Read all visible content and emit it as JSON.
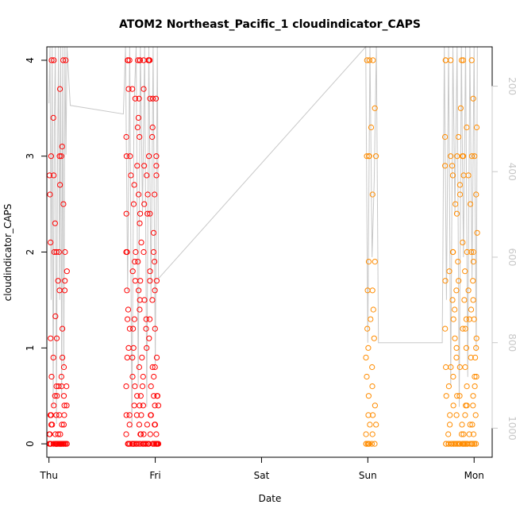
{
  "chart_data": {
    "type": "scatter",
    "title": "ATOM2 Northeast_Pacific_1 cloudindicator_CAPS",
    "xlabel": "Date",
    "ylabel": "cloudindicator_CAPS",
    "x_unit": "days since Thursday 00:00",
    "xlim": [
      -0.02,
      4.17
    ],
    "ylim": [
      -0.14,
      4.14
    ],
    "x_ticks": [
      {
        "label": "Thu",
        "x": 0
      },
      {
        "label": "Fri",
        "x": 1
      },
      {
        "label": "Sat",
        "x": 2
      },
      {
        "label": "Sun",
        "x": 3
      },
      {
        "label": "Mon",
        "x": 4
      }
    ],
    "y_ticks": [
      0,
      1,
      2,
      3,
      4
    ],
    "secondary_axis": {
      "side": "right",
      "range_top": 108,
      "range_bottom": 1068,
      "ticks": [
        200,
        400,
        600,
        800,
        1000
      ],
      "color": "#c8c8c8"
    },
    "series": [
      {
        "color": "#ff0000",
        "clusters": [
          {
            "x_min": 0.0,
            "x_max": 0.17,
            "values": [
              4,
              4,
              4,
              4,
              3.7,
              3.4,
              3.1,
              3,
              3,
              3,
              2.8,
              2.8,
              2.7,
              2.6,
              2.5,
              2.3,
              2.1,
              2,
              2,
              2,
              2,
              1.8,
              1.7,
              1.7,
              1.6,
              1.6,
              1.33,
              1.2,
              1.1,
              1.1,
              0.9,
              0.9,
              0.8,
              0.7,
              0.7,
              0.6,
              0.6,
              0.6,
              0.6,
              0.5,
              0.5,
              0.5,
              0.4,
              0.4,
              0.4,
              0.3,
              0.3,
              0.3,
              0.3,
              0.3,
              0.2,
              0.2,
              0.2,
              0.2,
              0.1,
              0.1,
              0.1,
              0.1,
              0.1,
              0,
              0,
              0,
              0,
              0,
              0,
              0,
              0,
              0,
              0,
              0,
              0,
              0,
              0,
              0,
              0,
              0,
              0,
              0,
              0,
              0,
              0,
              0,
              0,
              0
            ]
          },
          {
            "x_min": 0.72,
            "x_max": 1.03,
            "values": [
              4,
              4,
              4,
              4,
              4,
              4,
              4,
              4,
              4,
              4,
              3.7,
              3.7,
              3.7,
              3.6,
              3.6,
              3.6,
              3.6,
              3.6,
              3.4,
              3.3,
              3.3,
              3.2,
              3.2,
              3.2,
              3,
              3,
              3,
              3,
              2.9,
              2.9,
              2.9,
              2.8,
              2.8,
              2.8,
              2.7,
              2.6,
              2.6,
              2.6,
              2.5,
              2.5,
              2.4,
              2.4,
              2.4,
              2.4,
              2.3,
              2.2,
              2.1,
              2,
              2,
              2,
              2,
              2,
              1.9,
              1.9,
              1.9,
              1.8,
              1.8,
              1.7,
              1.7,
              1.7,
              1.7,
              1.6,
              1.6,
              1.6,
              1.5,
              1.5,
              1.5,
              1.4,
              1.4,
              1.3,
              1.3,
              1.3,
              1.3,
              1.2,
              1.2,
              1.2,
              1.2,
              1.1,
              1,
              1,
              1,
              0.9,
              0.9,
              0.9,
              0.9,
              0.8,
              0.8,
              0.8,
              0.7,
              0.7,
              0.7,
              0.6,
              0.6,
              0.6,
              0.6,
              0.5,
              0.5,
              0.5,
              0.5,
              0.5,
              0.4,
              0.4,
              0.4,
              0.4,
              0.4,
              0.3,
              0.3,
              0.3,
              0.3,
              0.3,
              0.3,
              0.2,
              0.2,
              0.2,
              0.2,
              0.2,
              0.1,
              0.1,
              0.1,
              0.1,
              0.1,
              0.1,
              0,
              0,
              0,
              0,
              0,
              0,
              0,
              0,
              0,
              0,
              0,
              0,
              0,
              0,
              0,
              0,
              0,
              0,
              0,
              0,
              0,
              0,
              0,
              0,
              0,
              0,
              0,
              0,
              0,
              0
            ]
          }
        ]
      },
      {
        "color": "#ff8c00",
        "clusters": [
          {
            "x_min": 2.98,
            "x_max": 3.08,
            "values": [
              4,
              4,
              4,
              3.5,
              3.3,
              3,
              3,
              3,
              3,
              2.6,
              1.9,
              1.9,
              1.6,
              1.6,
              1.4,
              1.3,
              1.2,
              1.1,
              1,
              0.9,
              0.8,
              0.7,
              0.6,
              0.5,
              0.4,
              0.3,
              0.3,
              0.2,
              0.2,
              0.1,
              0.1,
              0,
              0,
              0,
              0,
              0,
              0,
              0
            ]
          },
          {
            "x_min": 3.72,
            "x_max": 4.03,
            "values": [
              4,
              4,
              4,
              4,
              4,
              4,
              3.6,
              3.5,
              3.3,
              3.3,
              3.2,
              3.2,
              3,
              3,
              3,
              3,
              3,
              3,
              2.9,
              2.9,
              2.8,
              2.8,
              2.8,
              2.7,
              2.6,
              2.6,
              2.5,
              2.5,
              2.4,
              2.2,
              2.1,
              2,
              2,
              2,
              2,
              2,
              1.9,
              1.9,
              1.8,
              1.8,
              1.7,
              1.7,
              1.7,
              1.6,
              1.6,
              1.5,
              1.5,
              1.5,
              1.4,
              1.4,
              1.3,
              1.3,
              1.3,
              1.3,
              1.2,
              1.2,
              1.2,
              1.1,
              1.1,
              1,
              1,
              1,
              0.9,
              0.9,
              0.9,
              0.8,
              0.8,
              0.8,
              0.8,
              0.7,
              0.7,
              0.7,
              0.6,
              0.6,
              0.6,
              0.5,
              0.5,
              0.5,
              0.5,
              0.4,
              0.4,
              0.4,
              0.4,
              0.3,
              0.3,
              0.3,
              0.3,
              0.2,
              0.2,
              0.2,
              0.2,
              0.1,
              0.1,
              0.1,
              0.1,
              0.1,
              0,
              0,
              0,
              0,
              0,
              0,
              0,
              0,
              0,
              0,
              0,
              0,
              0,
              0,
              0,
              0,
              0,
              0,
              0,
              0,
              0,
              0,
              0,
              0,
              0,
              0,
              0,
              0,
              0,
              0
            ]
          }
        ]
      }
    ],
    "pressure_trace": {
      "color": "#c8c8c8",
      "points": [
        [
          0.0,
          240
        ],
        [
          0.01,
          108
        ],
        [
          0.02,
          700
        ],
        [
          0.03,
          108
        ],
        [
          0.04,
          950
        ],
        [
          0.05,
          300
        ],
        [
          0.06,
          108
        ],
        [
          0.07,
          990
        ],
        [
          0.08,
          400
        ],
        [
          0.09,
          108
        ],
        [
          0.1,
          700
        ],
        [
          0.11,
          108
        ],
        [
          0.12,
          930
        ],
        [
          0.13,
          108
        ],
        [
          0.14,
          860
        ],
        [
          0.15,
          108
        ],
        [
          0.16,
          360
        ],
        [
          0.17,
          108
        ],
        [
          0.2,
          245
        ],
        [
          0.7,
          265
        ],
        [
          0.72,
          108
        ],
        [
          0.74,
          680
        ],
        [
          0.76,
          108
        ],
        [
          0.78,
          1000
        ],
        [
          0.8,
          250
        ],
        [
          0.82,
          108
        ],
        [
          0.84,
          900
        ],
        [
          0.86,
          108
        ],
        [
          0.88,
          500
        ],
        [
          0.9,
          108
        ],
        [
          0.92,
          950
        ],
        [
          0.94,
          108
        ],
        [
          0.96,
          700
        ],
        [
          0.98,
          108
        ],
        [
          1.0,
          850
        ],
        [
          1.02,
          108
        ],
        [
          1.03,
          650
        ],
        [
          2.98,
          108
        ],
        [
          3.0,
          800
        ],
        [
          3.02,
          108
        ],
        [
          3.04,
          600
        ],
        [
          3.06,
          420
        ],
        [
          3.08,
          108
        ],
        [
          3.1,
          800
        ],
        [
          3.7,
          800
        ],
        [
          3.72,
          108
        ],
        [
          3.74,
          700
        ],
        [
          3.76,
          108
        ],
        [
          3.78,
          900
        ],
        [
          3.8,
          108
        ],
        [
          3.82,
          500
        ],
        [
          3.84,
          108
        ],
        [
          3.86,
          950
        ],
        [
          3.88,
          108
        ],
        [
          3.9,
          600
        ],
        [
          3.92,
          108
        ],
        [
          3.94,
          880
        ],
        [
          3.96,
          108
        ],
        [
          3.98,
          650
        ],
        [
          4.0,
          108
        ],
        [
          4.02,
          820
        ],
        [
          4.03,
          108
        ]
      ]
    },
    "grid": false,
    "legend": "none"
  }
}
